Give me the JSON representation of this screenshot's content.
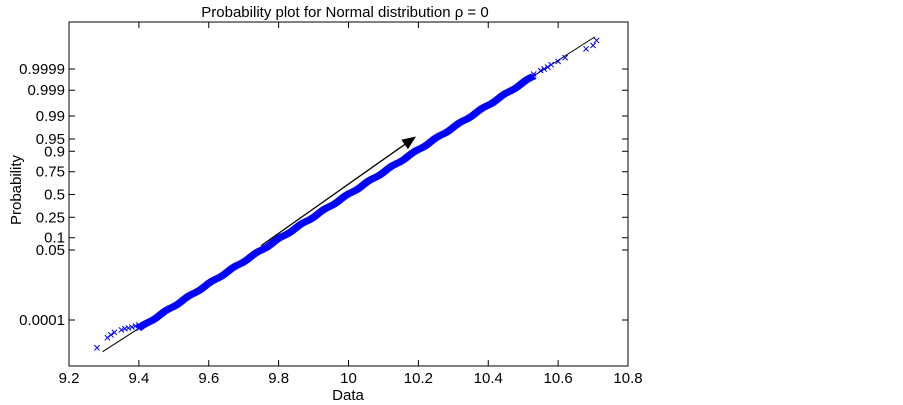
{
  "chart_data": {
    "type": "scatter",
    "title": "Probability plot for Normal distribution ρ = 0",
    "xlabel": "Data",
    "ylabel": "Probability",
    "xlim": [
      9.2,
      10.8
    ],
    "x_ticks": [
      9.2,
      9.4,
      9.6,
      9.8,
      10,
      10.2,
      10.4,
      10.6,
      10.8
    ],
    "x_tick_labels": [
      "9.2",
      "9.4",
      "9.6",
      "9.8",
      "10",
      "10.2",
      "10.4",
      "10.6",
      "10.8"
    ],
    "y_scale": "normal-probability",
    "y_ticks": [
      0.0001,
      0.05,
      0.1,
      0.25,
      0.5,
      0.75,
      0.9,
      0.95,
      0.99,
      0.999,
      0.9999
    ],
    "y_tick_labels": [
      "0.0001",
      "0.05",
      "0.1",
      "0.25",
      "0.5",
      "0.75",
      "0.9",
      "0.95",
      "0.99",
      "0.999",
      "0.9999"
    ],
    "grid": false,
    "marker": "x",
    "marker_color": "#0000ff",
    "reference_line": {
      "color": "#000000",
      "points": [
        [
          9.296,
          1.6e-06
        ],
        [
          10.705,
          0.9999985
        ]
      ]
    },
    "arrow": {
      "from": [
        9.75,
        0.065
      ],
      "to": [
        10.19,
        0.955
      ],
      "color": "#000000"
    },
    "series": [
      {
        "values": [
          [
            9.28,
            2.8e-06
          ],
          [
            9.31,
            1.1e-05
          ],
          [
            9.32,
            1.6e-05
          ],
          [
            9.33,
            2.2e-05
          ],
          [
            9.35,
            3e-05
          ],
          [
            9.36,
            3.5e-05
          ],
          [
            9.37,
            3.8e-05
          ],
          [
            9.38,
            4.3e-05
          ],
          [
            9.39,
            4.8e-05
          ],
          [
            9.4,
            5.5e-05
          ],
          [
            10.53,
            0.99982
          ],
          [
            10.55,
            0.99988
          ],
          [
            10.56,
            0.9999
          ],
          [
            10.57,
            0.99992
          ],
          [
            10.58,
            0.99994
          ],
          [
            10.6,
            0.99996
          ],
          [
            10.62,
            0.999975
          ],
          [
            10.68,
            0.999992
          ],
          [
            10.7,
            0.999995
          ],
          [
            10.71,
            0.9999975
          ]
        ]
      }
    ]
  }
}
